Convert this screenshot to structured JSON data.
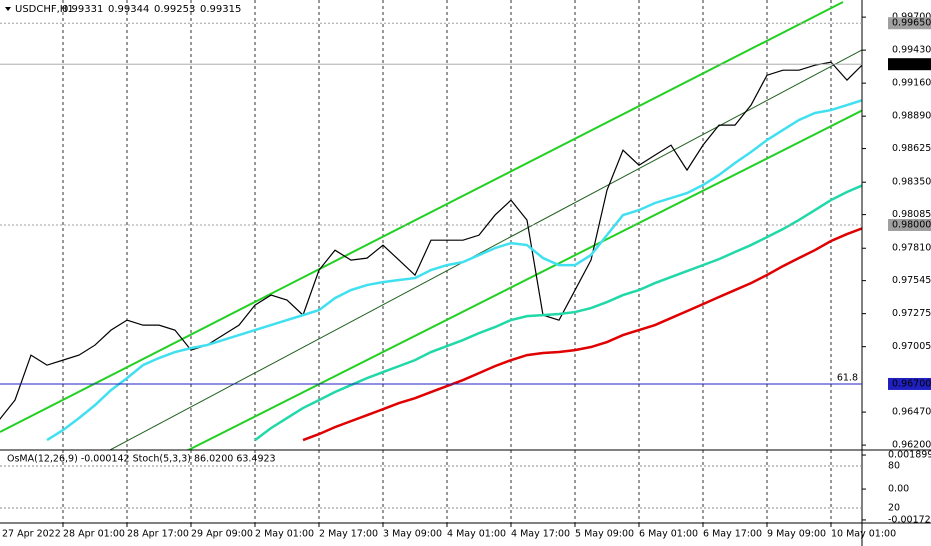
{
  "chart_data": {
    "type": "line",
    "title": "USDCHF,H1",
    "ohlc": [
      0.99331,
      0.99344,
      0.99253,
      0.99315
    ],
    "osc_title": "OsMA(12,26,9) -0.000142  Stoch(5,3,3) 86.0200 63.4923",
    "categories": [
      "27 Apr 2022",
      null,
      null,
      null,
      "28 Apr 01:00",
      null,
      null,
      null,
      "28 Apr 17:00",
      null,
      null,
      null,
      "29 Apr 09:00",
      null,
      null,
      null,
      "2 May 01:00",
      null,
      null,
      null,
      "2 May 17:00",
      null,
      null,
      null,
      "3 May 09:00",
      null,
      null,
      null,
      "4 May 01:00",
      null,
      null,
      null,
      "4 May 17:00",
      null,
      null,
      null,
      "5 May 09:00",
      null,
      null,
      null,
      "6 May 01:00",
      null,
      null,
      null,
      "6 May 17:00",
      null,
      null,
      null,
      "9 May 09:00",
      null,
      null,
      null,
      "10 May 01:00",
      null,
      null
    ],
    "series": [
      {
        "color": "#000000",
        "values": [
          0.96404,
          0.96568,
          0.96936,
          0.96854,
          0.96895,
          0.96936,
          0.97018,
          0.9714,
          0.97222,
          0.97181,
          0.97181,
          0.9714,
          0.96977,
          0.97018,
          0.97099,
          0.97181,
          0.97345,
          0.97427,
          0.97386,
          0.97263,
          0.97631,
          0.97794,
          0.97713,
          0.97729,
          0.97835,
          0.97713,
          0.9759,
          0.97876,
          0.97876,
          0.97876,
          0.97917,
          0.98081,
          0.98203,
          0.9804,
          0.97263,
          0.97222,
          0.97467,
          0.97713,
          0.98285,
          0.98612,
          0.98489,
          0.98571,
          0.98653,
          0.98449,
          0.98653,
          0.98817,
          0.98817,
          0.9898,
          0.99225,
          0.99266,
          0.99266,
          0.99307,
          0.99332,
          0.99185,
          0.99315
        ]
      },
      {
        "color": "#40e0f0",
        "values": [
          null,
          null,
          null,
          0.96241,
          0.96323,
          0.96421,
          0.96527,
          0.9665,
          0.96748,
          0.96854,
          0.96912,
          0.96961,
          0.96993,
          0.97018,
          0.97059,
          0.971,
          0.97141,
          0.97182,
          0.97223,
          0.97263,
          0.97304,
          0.97402,
          0.97468,
          0.97509,
          0.97533,
          0.9755,
          0.97566,
          0.97632,
          0.97672,
          0.97697,
          0.97754,
          0.97811,
          0.97852,
          0.97836,
          0.9773,
          0.97672,
          0.97672,
          0.97754,
          0.97918,
          0.98081,
          0.98122,
          0.9818,
          0.9822,
          0.98261,
          0.98327,
          0.98409,
          0.98507,
          0.98597,
          0.98695,
          0.98777,
          0.98859,
          0.98916,
          0.9894,
          0.98981,
          0.99022
        ]
      },
      {
        "color": "#20d8a8",
        "values": [
          null,
          null,
          null,
          null,
          null,
          null,
          null,
          null,
          null,
          null,
          null,
          null,
          null,
          null,
          null,
          null,
          0.96241,
          0.96339,
          0.96421,
          0.96503,
          0.96568,
          0.96634,
          0.96691,
          0.96748,
          0.96797,
          0.96846,
          0.96895,
          0.96961,
          0.9701,
          0.97059,
          0.97116,
          0.97165,
          0.97223,
          0.97255,
          0.97263,
          0.97272,
          0.97288,
          0.97321,
          0.9737,
          0.97427,
          0.97468,
          0.97525,
          0.97574,
          0.97623,
          0.97672,
          0.97721,
          0.97779,
          0.97836,
          0.97901,
          0.97967,
          0.98041,
          0.98122,
          0.98204,
          0.9827,
          0.98327
        ]
      },
      {
        "color": "#e00000",
        "values": [
          null,
          null,
          null,
          null,
          null,
          null,
          null,
          null,
          null,
          null,
          null,
          null,
          null,
          null,
          null,
          null,
          null,
          null,
          null,
          0.96241,
          0.9629,
          0.96347,
          0.96396,
          0.96445,
          0.96494,
          0.96544,
          0.96584,
          0.96634,
          0.96683,
          0.96732,
          0.96789,
          0.96846,
          0.96895,
          0.96936,
          0.96953,
          0.96961,
          0.96977,
          0.97002,
          0.97043,
          0.971,
          0.97141,
          0.97182,
          0.97239,
          0.97296,
          0.97353,
          0.97411,
          0.97468,
          0.97525,
          0.97591,
          0.97664,
          0.9773,
          0.97795,
          0.97869,
          0.97926,
          0.97975
        ]
      }
    ],
    "ylim": [
      0.9616,
      0.9984
    ],
    "yticks": [
      {
        "value": 0.997,
        "label": "0.99700"
      },
      {
        "value": 0.9943,
        "label": "0.99430"
      },
      {
        "value": 0.9916,
        "label": "0.99160"
      },
      {
        "value": 0.9889,
        "label": "0.98890"
      },
      0.98625,
      {
        "value": 0.9835,
        "label": "0.98350"
      },
      0.98085,
      {
        "value": 0.9781,
        "label": "0.97810"
      },
      0.97545,
      0.97275,
      0.97005,
      {
        "value": 0.9647,
        "label": "0.96470"
      },
      {
        "value": 0.962,
        "label": "0.96200"
      }
    ],
    "levels": [
      {
        "value": 0.9965,
        "label": "0.99650",
        "color": "#a0a0a0"
      },
      {
        "value": 0.98,
        "label": "0.98000",
        "color": "#a0a0a0"
      },
      {
        "value": 0.967,
        "label": "0.96700",
        "color": "#2020c0",
        "name": "61.8"
      }
    ],
    "current_price": 0.99315,
    "osma_lim": [
      -0.00184,
      0.00207
    ],
    "osma_ticks": [
      0.0018998,
      {
        "value": 0,
        "label": "0.00"
      },
      -0.001725
    ],
    "stoch_lim": [
      0,
      100
    ],
    "stoch_ticks": [
      80,
      20
    ]
  }
}
